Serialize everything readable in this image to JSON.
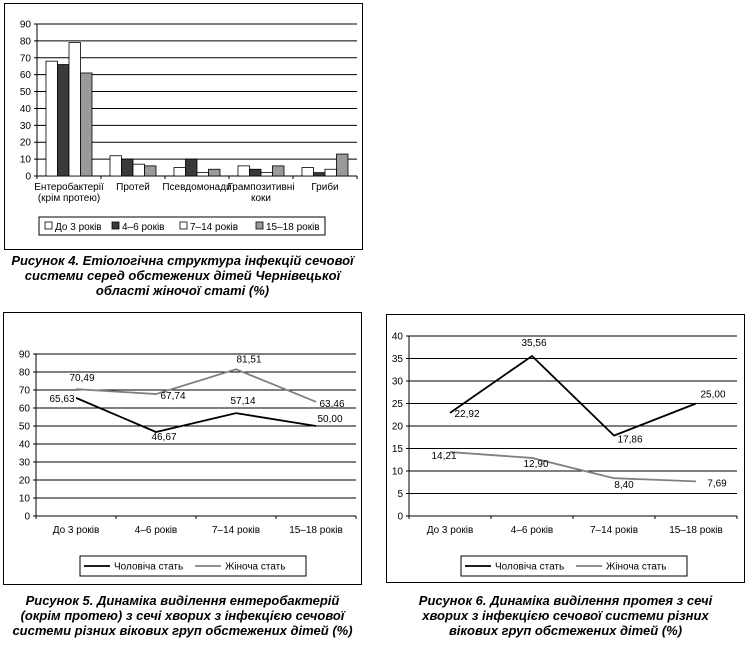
{
  "chart_data": [
    {
      "type": "bar",
      "categories": [
        [
          "Ентеробактерії",
          "(крім протею)"
        ],
        [
          "Протей"
        ],
        [
          "Псевдомонади"
        ],
        [
          "Грампозитивні",
          "коки"
        ],
        [
          "Гриби"
        ]
      ],
      "series": [
        {
          "name": "До 3 років",
          "values": [
            68,
            12,
            5,
            6,
            5
          ],
          "color": "#ffffff"
        },
        {
          "name": "4–6 років",
          "values": [
            66,
            10,
            10,
            4,
            2
          ],
          "color": "#3a3a3a"
        },
        {
          "name": "7–14 років",
          "values": [
            79,
            7,
            2,
            2,
            4
          ],
          "color": "#ffffff"
        },
        {
          "name": "15–18 років",
          "values": [
            61,
            6,
            4,
            6,
            13
          ],
          "color": "#9a9a9a"
        }
      ],
      "ylim": [
        0,
        90
      ],
      "yticks": [
        "0",
        "10",
        "20",
        "30",
        "40",
        "50",
        "60",
        "70",
        "80",
        "90"
      ],
      "grid": true,
      "legend": "bottom",
      "caption": [
        "Рисунок 4. Етіологічна структура інфекцій сечової",
        "системи серед обстежених дітей Чернівецької",
        "області жіночої статі (%)"
      ]
    },
    {
      "type": "line",
      "categories": [
        "До 3 років",
        "4–6 років",
        "7–14 років",
        "15–18 років"
      ],
      "series": [
        {
          "name": "Чоловіча стать",
          "values": [
            65.63,
            46.67,
            57.14,
            50.0
          ],
          "labels": [
            "65,63",
            "46,67",
            "57,14",
            "50,00"
          ],
          "color": "#000000"
        },
        {
          "name": "Жіноча стать",
          "values": [
            70.49,
            67.74,
            81.51,
            63.46
          ],
          "labels": [
            "70,49",
            "67,74",
            "81,51",
            "63,46"
          ],
          "color": "#808080"
        }
      ],
      "ylim": [
        0,
        90
      ],
      "yticks": [
        "0",
        "10",
        "20",
        "30",
        "40",
        "50",
        "60",
        "70",
        "80",
        "90"
      ],
      "grid": true,
      "legend": "bottom",
      "caption": [
        "Рисунок 5. Динаміка виділення ентеробактерій",
        "(окрім протею) з сечі хворих з інфекцією сечової",
        "системи різних вікових груп обстежених дітей (%)"
      ]
    },
    {
      "type": "line",
      "categories": [
        "До 3 років",
        "4–6 років",
        "7–14 років",
        "15–18 років"
      ],
      "series": [
        {
          "name": "Чоловіча стать",
          "values": [
            22.92,
            35.56,
            17.86,
            25.0
          ],
          "labels": [
            "22,92",
            "35,56",
            "17,86",
            "25,00"
          ],
          "color": "#000000"
        },
        {
          "name": "Жіноча стать",
          "values": [
            14.21,
            12.9,
            8.4,
            7.69
          ],
          "labels": [
            "14,21",
            "12,90",
            "8,40",
            "7,69"
          ],
          "color": "#808080"
        }
      ],
      "ylim": [
        0,
        40
      ],
      "yticks": [
        "0",
        "5",
        "10",
        "15",
        "20",
        "25",
        "30",
        "35",
        "40"
      ],
      "grid": true,
      "legend": "bottom",
      "caption": [
        "Рисунок 6. Динаміка виділення протея з сечі",
        "хворих з інфекцією сечової системи різних",
        "вікових груп обстежених дітей (%)"
      ]
    }
  ]
}
